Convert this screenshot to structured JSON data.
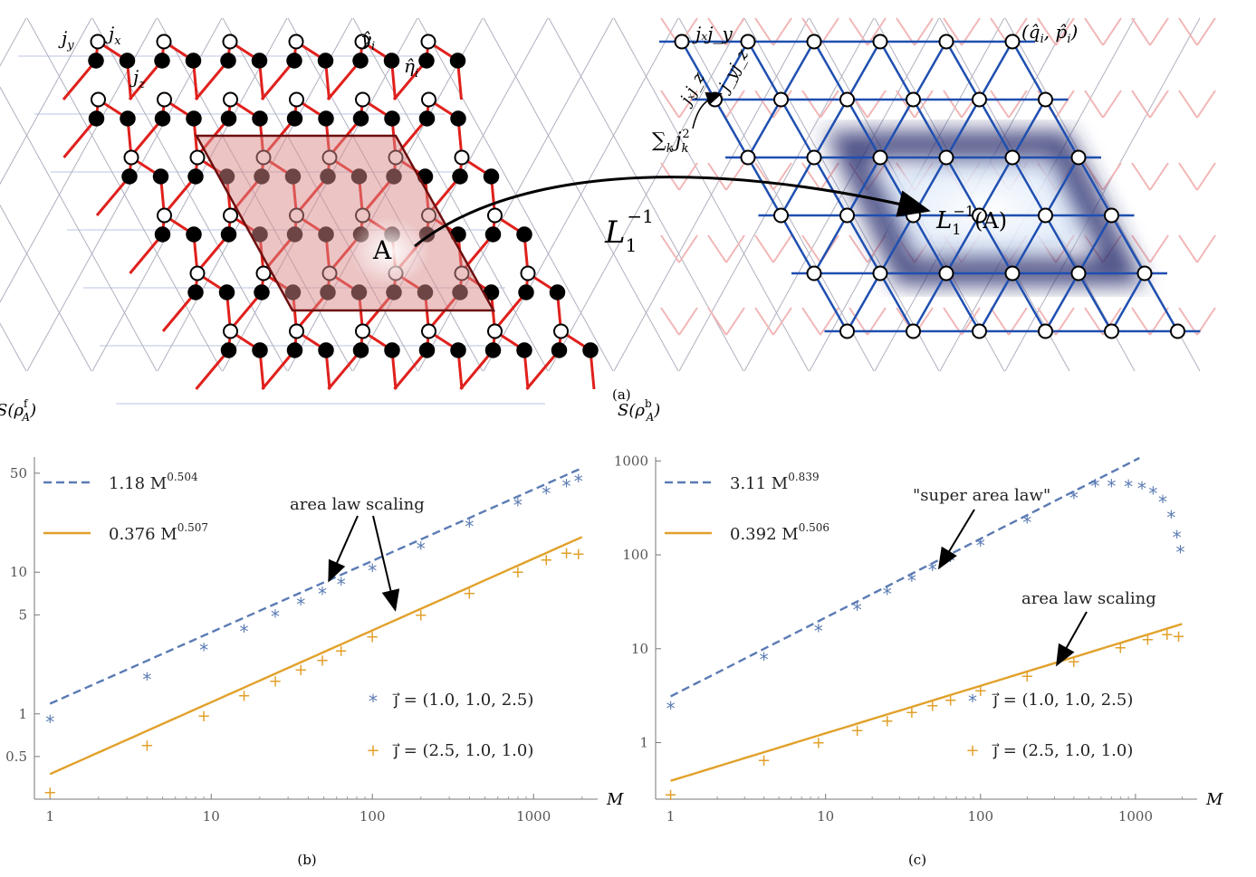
{
  "panel_a": {
    "caption": "(a)",
    "left_labels": {
      "jy": "j",
      "jy_sub": "y",
      "jx": "j",
      "jx_sub": "x",
      "jz": "j",
      "jz_sub": "z",
      "gamma": "γ̂",
      "gamma_sub": "i",
      "eta": "η̂",
      "eta_sub": "i",
      "region": "A"
    },
    "map_label": "L",
    "map_sub": "1",
    "map_sup": "−1",
    "right_labels": {
      "jxjy": "jₓj_y",
      "jxjz": "jₓj_z",
      "jyjz": "j_yj_z",
      "qp": "(q̂",
      "qp_i": "i",
      "qp_mid": ", p̂",
      "qp_end": ")",
      "sum": "∑",
      "sum_k": "k",
      "sum_j": "j",
      "sum_sub": "k",
      "sum_sup": "2",
      "region_text": "(A)"
    }
  },
  "chart_data": [
    {
      "type": "scatter",
      "caption": "(b)",
      "ylabel": "S(ρ",
      "ylabel_sup": "f",
      "ylabel_sub": "A",
      "xlabel": "M",
      "xscale": "log",
      "yscale": "log",
      "xlim": [
        0.8,
        2500
      ],
      "ylim": [
        0.25,
        65
      ],
      "xticks": [
        "1",
        "10",
        "100",
        "1000"
      ],
      "yticks": [
        "0.5",
        "1",
        "5",
        "10",
        "50"
      ],
      "annotation": "area law scaling",
      "fit_lines": [
        {
          "name": "1.18 M",
          "sup": "0.504",
          "coef": 1.18,
          "exp": 0.504,
          "color": "#5b7bb4",
          "dash": true
        },
        {
          "name": "0.376 M",
          "sup": "0.507",
          "coef": 0.376,
          "exp": 0.507,
          "color": "#e1a12b",
          "dash": false
        }
      ],
      "series": [
        {
          "name": "j⃗ = (1.0, 1.0, 2.5)",
          "marker": "*",
          "color": "#5b7bb4",
          "points": [
            [
              1,
              0.9
            ],
            [
              4,
              1.8
            ],
            [
              9,
              2.9
            ],
            [
              16,
              3.9
            ],
            [
              25,
              5.0
            ],
            [
              36,
              6.1
            ],
            [
              49,
              7.2
            ],
            [
              64,
              8.4
            ],
            [
              100,
              10.5
            ],
            [
              200,
              15.0
            ],
            [
              400,
              21.5
            ],
            [
              800,
              30.5
            ],
            [
              1200,
              37
            ],
            [
              1600,
              41.5
            ],
            [
              1900,
              45
            ]
          ]
        },
        {
          "name": "j⃗ = (2.5, 1.0, 1.0)",
          "marker": "+",
          "color": "#e1a12b",
          "points": [
            [
              1,
              0.28
            ],
            [
              4,
              0.6
            ],
            [
              9,
              0.97
            ],
            [
              16,
              1.35
            ],
            [
              25,
              1.7
            ],
            [
              36,
              2.05
            ],
            [
              49,
              2.4
            ],
            [
              64,
              2.8
            ],
            [
              100,
              3.5
            ],
            [
              200,
              5.0
            ],
            [
              400,
              7.1
            ],
            [
              800,
              10.0
            ],
            [
              1200,
              12.2
            ],
            [
              1600,
              13.7
            ],
            [
              1900,
              13.5
            ]
          ]
        }
      ]
    },
    {
      "type": "scatter",
      "caption": "(c)",
      "ylabel": "S(ρ",
      "ylabel_sup": "b",
      "ylabel_sub": "A",
      "xlabel": "M",
      "xscale": "log",
      "yscale": "log",
      "xlim": [
        0.8,
        2500
      ],
      "ylim": [
        0.25,
        1100
      ],
      "xticks": [
        "1",
        "10",
        "100",
        "1000"
      ],
      "yticks": [
        "1",
        "10",
        "100",
        "1000"
      ],
      "annotation_top": "\"super area law\"",
      "annotation_bottom": "area law scaling",
      "fit_lines": [
        {
          "name": "3.11 M",
          "sup": "0.839",
          "coef": 3.11,
          "exp": 0.839,
          "color": "#5b7bb4",
          "dash": true
        },
        {
          "name": "0.392 M",
          "sup": "0.506",
          "coef": 0.392,
          "exp": 0.506,
          "color": "#e1a12b",
          "dash": false
        }
      ],
      "series": [
        {
          "name": "j⃗ = (1.0, 1.0, 2.5)",
          "marker": "*",
          "color": "#5b7bb4",
          "points": [
            [
              1,
              2.4
            ],
            [
              4,
              8
            ],
            [
              9,
              16
            ],
            [
              16,
              27
            ],
            [
              25,
              40
            ],
            [
              36,
              55
            ],
            [
              49,
              72
            ],
            [
              64,
              90
            ],
            [
              100,
              130
            ],
            [
              200,
              230
            ],
            [
              400,
              420
            ],
            [
              550,
              560
            ],
            [
              700,
              560
            ],
            [
              900,
              555
            ],
            [
              1100,
              530
            ],
            [
              1300,
              470
            ],
            [
              1500,
              380
            ],
            [
              1700,
              260
            ],
            [
              1850,
              160
            ],
            [
              1950,
              110
            ]
          ]
        },
        {
          "name": "j⃗ = (2.5, 1.0, 1.0)",
          "marker": "+",
          "color": "#e1a12b",
          "points": [
            [
              1,
              0.28
            ],
            [
              4,
              0.65
            ],
            [
              9,
              1.0
            ],
            [
              16,
              1.35
            ],
            [
              25,
              1.7
            ],
            [
              36,
              2.1
            ],
            [
              49,
              2.5
            ],
            [
              64,
              2.85
            ],
            [
              100,
              3.6
            ],
            [
              200,
              5.1
            ],
            [
              400,
              7.3
            ],
            [
              800,
              10.3
            ],
            [
              1200,
              12.5
            ],
            [
              1600,
              14.2
            ],
            [
              1900,
              13.6
            ]
          ]
        }
      ]
    }
  ]
}
